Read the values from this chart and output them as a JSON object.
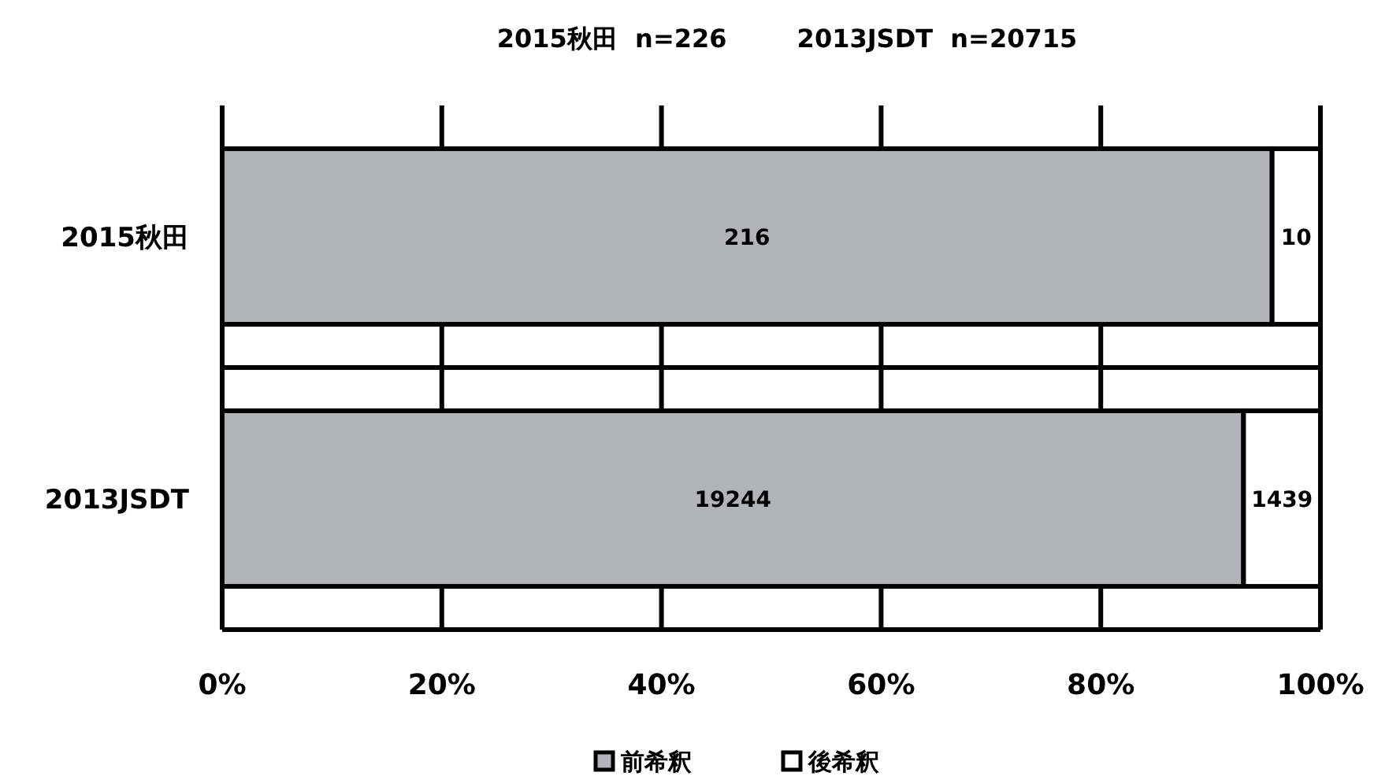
{
  "chart_data": {
    "type": "bar",
    "orientation": "horizontal",
    "stacked": true,
    "title": "2015秋田  n=226        2013JSDT  n=20715",
    "categories": [
      "2015秋田",
      "2013JSDT"
    ],
    "series": [
      {
        "name": "前希釈",
        "color": "#b1b3b6",
        "values": [
          95.6,
          93.0
        ]
      },
      {
        "name": "後希釈",
        "color": "#ffffff",
        "values": [
          4.4,
          7.0
        ]
      }
    ],
    "annotations": [
      "216",
      "10",
      "19244",
      "1439"
    ],
    "xlim": [
      0,
      100
    ],
    "xticks": [
      {
        "value": 0,
        "label": "0%"
      },
      {
        "value": 20,
        "label": "20%"
      },
      {
        "value": 40,
        "label": "40%"
      },
      {
        "value": 60,
        "label": "60%"
      },
      {
        "value": 80,
        "label": "80%"
      },
      {
        "value": 100,
        "label": "100%"
      }
    ],
    "grid": "x",
    "legend": "bottom"
  }
}
